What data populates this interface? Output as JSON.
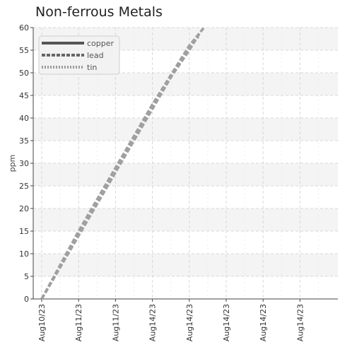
{
  "chart_data": {
    "type": "line",
    "title": "Non-ferrous Metals",
    "xlabel": "",
    "ylabel": "ppm",
    "ylim": [
      0,
      60
    ],
    "yticks": [
      0,
      5,
      10,
      15,
      20,
      25,
      30,
      35,
      40,
      45,
      50,
      55,
      60
    ],
    "x_tick_labels": [
      "Aug10/23",
      "Aug11/23",
      "Aug11/23",
      "Aug14/23",
      "Aug14/23",
      "Aug14/23",
      "Aug14/23",
      "Aug14/23"
    ],
    "x_range": [
      0,
      8.2
    ],
    "grid": true,
    "legend_position": "top-left",
    "series": [
      {
        "name": "copper",
        "color": "#555555",
        "style": "solid",
        "points": [
          [
            0,
            0
          ],
          [
            1,
            14
          ],
          [
            2,
            28
          ],
          [
            3,
            43
          ],
          [
            4,
            55
          ],
          [
            4.3,
            59
          ]
        ]
      },
      {
        "name": "lead",
        "color": "#666666",
        "style": "dashed",
        "points": [
          [
            0,
            0
          ],
          [
            1,
            14
          ],
          [
            2,
            28
          ],
          [
            3,
            42
          ],
          [
            4,
            56
          ],
          [
            4.25,
            58
          ]
        ]
      },
      {
        "name": "tin",
        "color": "#9a9a9a",
        "style": "dotted",
        "points": [
          [
            0,
            0
          ],
          [
            1,
            15
          ],
          [
            2,
            29
          ],
          [
            3,
            43
          ],
          [
            4,
            56
          ],
          [
            4.4,
            60
          ]
        ]
      }
    ]
  }
}
